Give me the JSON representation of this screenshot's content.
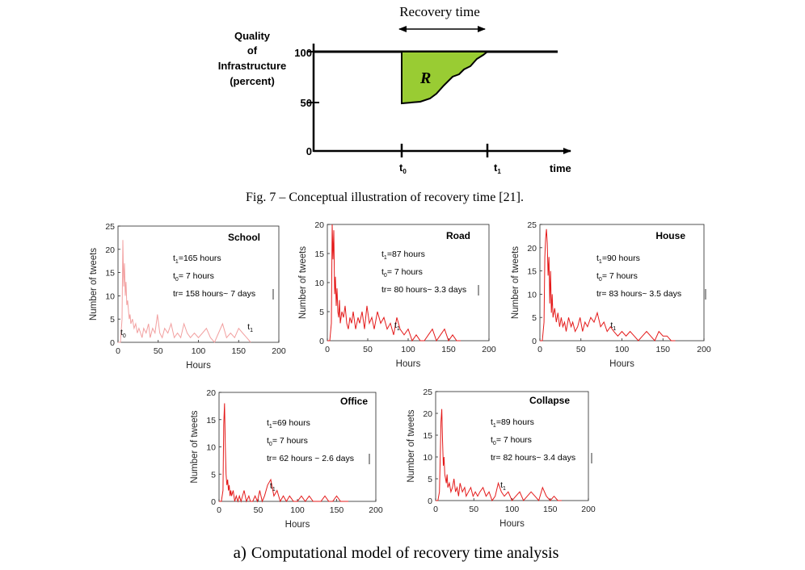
{
  "concept": {
    "title_top": "Recovery time",
    "ylabel_lines": [
      "Quality",
      "of",
      "Infrastructure",
      "(percent)"
    ],
    "ticks": [
      "100",
      "50",
      "0"
    ],
    "region_label": "R",
    "t0_label": "t",
    "t0_sub": "0",
    "t1_label": "t",
    "t1_sub": "1",
    "time_label": "time",
    "caption": "Fig. 7 – Conceptual illustration of recovery time [21]."
  },
  "bottom_caption_prefix": "a)",
  "bottom_caption": "Computational model of recovery time analysis",
  "chart_data": [
    {
      "type": "line",
      "title": "School",
      "xlabel": "Hours",
      "ylabel": "Number of tweets",
      "xlim": [
        0,
        200
      ],
      "ylim": [
        0,
        25
      ],
      "xticks": [
        "0",
        "50",
        "100",
        "150",
        "200"
      ],
      "yticks": [
        "0",
        "5",
        "10",
        "15",
        "20",
        "25"
      ],
      "annotations": [
        "t=165  hours",
        "t= 7 hours",
        "tr= 158 hours~ 7 days"
      ],
      "marker_t0": "t",
      "marker_t1": "t",
      "color": "#f2a0a0",
      "x": [
        0,
        3,
        5,
        6,
        7,
        8,
        9,
        10,
        11,
        12,
        13,
        14,
        15,
        16,
        18,
        20,
        22,
        24,
        26,
        28,
        30,
        32,
        35,
        38,
        40,
        43,
        46,
        49,
        52,
        55,
        58,
        62,
        66,
        70,
        74,
        78,
        82,
        86,
        90,
        95,
        100,
        105,
        110,
        115,
        120,
        125,
        130,
        135,
        140,
        145,
        150,
        155,
        160,
        165
      ],
      "y": [
        0,
        0,
        5,
        22,
        12,
        17,
        10,
        13,
        8,
        9,
        7,
        5,
        6,
        4,
        5,
        3,
        4,
        2,
        3,
        2,
        1,
        3,
        2,
        4,
        1,
        3,
        2,
        6,
        2,
        1,
        3,
        2,
        4,
        1,
        2,
        1,
        4,
        2,
        1,
        2,
        1,
        2,
        3,
        1,
        0,
        2,
        4,
        1,
        2,
        1,
        3,
        2,
        1,
        0
      ]
    },
    {
      "type": "line",
      "title": "Road",
      "xlabel": "Hours",
      "ylabel": "Number of tweets",
      "xlim": [
        0,
        200
      ],
      "ylim": [
        0,
        20
      ],
      "xticks": [
        "0",
        "50",
        "100",
        "150",
        "200"
      ],
      "yticks": [
        "0",
        "5",
        "10",
        "15",
        "20"
      ],
      "annotations": [
        "t=87  hours",
        "t= 7 hours",
        "tr= 80 hours~ 3.3 days"
      ],
      "marker_t1": "t",
      "color": "#e41a1a",
      "x": [
        0,
        3,
        5,
        6,
        7,
        8,
        9,
        10,
        11,
        12,
        13,
        14,
        15,
        16,
        18,
        20,
        22,
        24,
        26,
        28,
        30,
        32,
        35,
        38,
        40,
        43,
        46,
        49,
        52,
        55,
        58,
        62,
        66,
        70,
        74,
        78,
        82,
        86,
        90,
        95,
        100,
        105,
        110,
        115,
        120,
        125,
        130,
        135,
        140,
        145,
        150,
        155,
        160,
        165
      ],
      "y": [
        0,
        0,
        3,
        20,
        14,
        19,
        8,
        11,
        6,
        9,
        5,
        4,
        7,
        3,
        5,
        4,
        6,
        3,
        2,
        4,
        3,
        5,
        2,
        4,
        3,
        5,
        2,
        6,
        3,
        4,
        2,
        5,
        3,
        4,
        2,
        3,
        1,
        4,
        2,
        1,
        2,
        0,
        1,
        0,
        0,
        1,
        2,
        0,
        1,
        2,
        0,
        1,
        0,
        0
      ]
    },
    {
      "type": "line",
      "title": "House",
      "xlabel": "Hours",
      "ylabel": "Number of tweets",
      "xlim": [
        0,
        200
      ],
      "ylim": [
        0,
        25
      ],
      "xticks": [
        "0",
        "50",
        "100",
        "150",
        "200"
      ],
      "yticks": [
        "0",
        "5",
        "10",
        "15",
        "20",
        "25"
      ],
      "annotations": [
        "t=90  hours",
        "t= 7 hours",
        "tr= 83 hours~ 3.5 days"
      ],
      "marker_t1": "t",
      "color": "#e41a1a",
      "x": [
        0,
        3,
        5,
        6,
        7,
        8,
        9,
        10,
        11,
        12,
        13,
        14,
        15,
        16,
        18,
        20,
        22,
        24,
        26,
        28,
        30,
        32,
        35,
        38,
        40,
        43,
        46,
        49,
        52,
        55,
        58,
        62,
        66,
        70,
        74,
        78,
        82,
        86,
        90,
        95,
        100,
        105,
        110,
        115,
        120,
        125,
        130,
        135,
        140,
        145,
        150,
        155,
        160,
        165
      ],
      "y": [
        0,
        0,
        4,
        18,
        22,
        24,
        21,
        14,
        18,
        8,
        15,
        6,
        10,
        5,
        7,
        4,
        6,
        3,
        5,
        3,
        4,
        2,
        5,
        3,
        4,
        2,
        3,
        5,
        2,
        4,
        3,
        5,
        4,
        6,
        3,
        4,
        2,
        3,
        2,
        1,
        2,
        1,
        2,
        1,
        0,
        1,
        2,
        1,
        0,
        2,
        1,
        1,
        0,
        0
      ]
    },
    {
      "type": "line",
      "title": "Office",
      "xlabel": "Hours",
      "ylabel": "Number of tweets",
      "xlim": [
        0,
        200
      ],
      "ylim": [
        0,
        20
      ],
      "xticks": [
        "0",
        "50",
        "100",
        "150",
        "200"
      ],
      "yticks": [
        "0",
        "5",
        "10",
        "15",
        "20"
      ],
      "annotations": [
        "t=69  hours",
        "t= 7 hours",
        "tr= 62 hours ~ 2.6 days"
      ],
      "marker_t1": "t",
      "color": "#e41a1a",
      "x": [
        0,
        3,
        5,
        6,
        7,
        8,
        9,
        10,
        11,
        12,
        13,
        14,
        15,
        16,
        18,
        20,
        22,
        24,
        26,
        28,
        30,
        32,
        35,
        38,
        40,
        43,
        46,
        49,
        52,
        55,
        58,
        62,
        66,
        70,
        74,
        78,
        82,
        86,
        90,
        95,
        100,
        105,
        110,
        115,
        120,
        125,
        130,
        135,
        140,
        145,
        150,
        155,
        160,
        165
      ],
      "y": [
        0,
        0,
        2,
        14,
        18,
        10,
        5,
        3,
        4,
        2,
        3,
        1,
        2,
        1,
        2,
        0,
        1,
        0,
        1,
        0,
        1,
        2,
        0,
        1,
        0,
        0,
        1,
        0,
        2,
        0,
        1,
        3,
        4,
        1,
        2,
        0,
        1,
        0,
        1,
        0,
        0,
        1,
        0,
        1,
        0,
        0,
        0,
        1,
        0,
        0,
        1,
        0,
        0,
        0
      ]
    },
    {
      "type": "line",
      "title": "Collapse",
      "xlabel": "Hours",
      "ylabel": "Number of tweets",
      "xlim": [
        0,
        200
      ],
      "ylim": [
        0,
        25
      ],
      "xticks": [
        "0",
        "50",
        "100",
        "150",
        "200"
      ],
      "yticks": [
        "0",
        "5",
        "10",
        "15",
        "20",
        "25"
      ],
      "annotations": [
        "t=89  hours",
        "t= 7 hours",
        "tr= 82 hours~ 3.4 days"
      ],
      "marker_t1": "t",
      "color": "#e41a1a",
      "x": [
        0,
        3,
        5,
        6,
        7,
        8,
        9,
        10,
        11,
        12,
        13,
        14,
        15,
        16,
        18,
        20,
        22,
        24,
        26,
        28,
        30,
        32,
        35,
        38,
        40,
        43,
        46,
        49,
        52,
        55,
        58,
        62,
        66,
        70,
        74,
        78,
        82,
        86,
        90,
        95,
        100,
        105,
        110,
        115,
        120,
        125,
        130,
        135,
        140,
        145,
        150,
        155,
        160,
        165
      ],
      "y": [
        0,
        0,
        2,
        10,
        18,
        21,
        14,
        8,
        10,
        6,
        5,
        4,
        6,
        3,
        4,
        2,
        3,
        5,
        2,
        3,
        1,
        4,
        2,
        3,
        1,
        2,
        3,
        1,
        2,
        1,
        2,
        3,
        1,
        2,
        0,
        1,
        4,
        2,
        1,
        2,
        0,
        1,
        2,
        0,
        1,
        2,
        1,
        0,
        3,
        1,
        0,
        1,
        0,
        0
      ]
    }
  ]
}
